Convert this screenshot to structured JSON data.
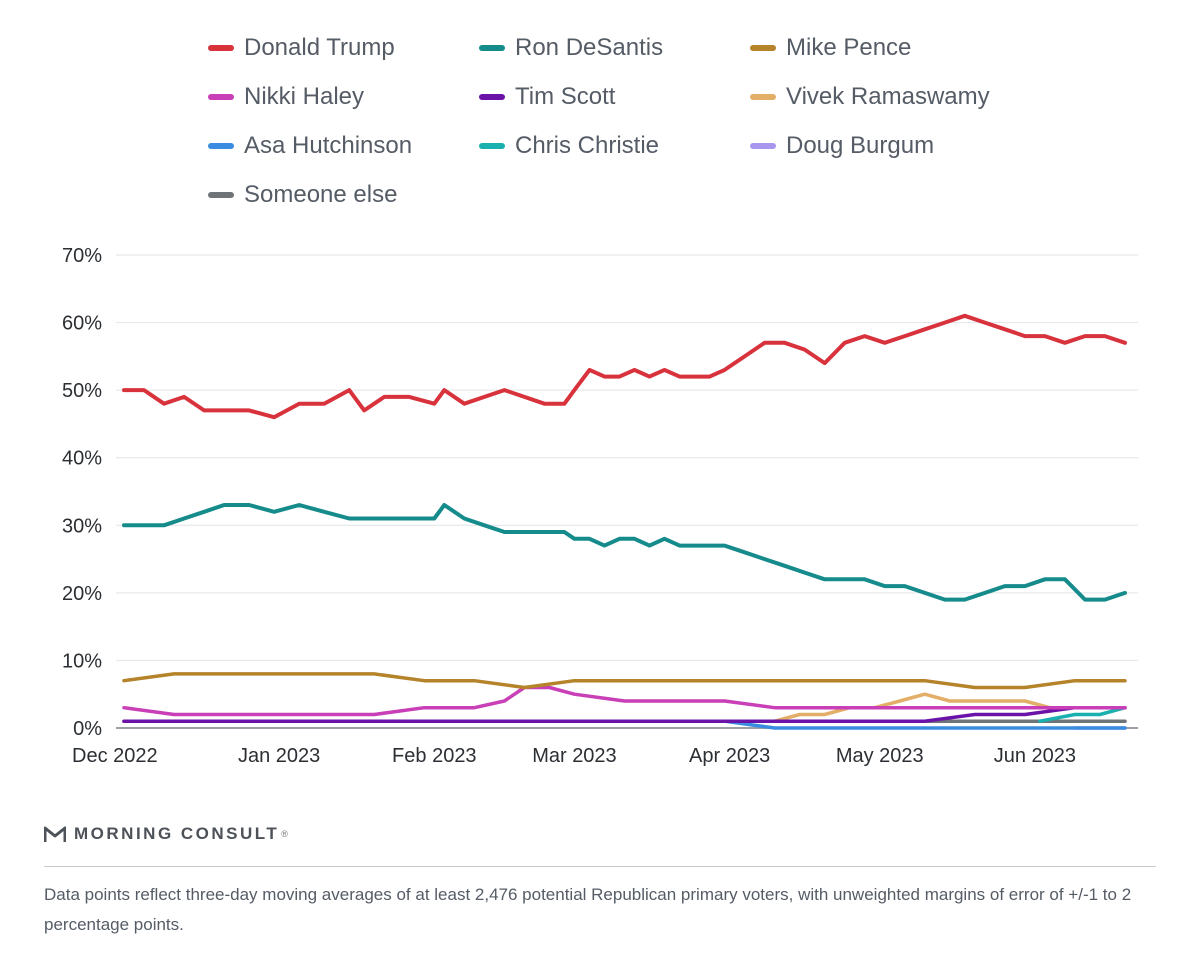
{
  "chart_data": {
    "type": "line",
    "ylim": [
      0,
      70
    ],
    "y_ticks": [
      "0%",
      "10%",
      "20%",
      "30%",
      "40%",
      "50%",
      "60%",
      "70%"
    ],
    "x_ticks": [
      "Dec 2022",
      "Jan 2023",
      "Feb 2023",
      "Mar 2023",
      "Apr 2023",
      "May 2023",
      "Jun 2023"
    ],
    "x_tick_days": [
      0,
      31,
      62,
      90,
      121,
      151,
      182
    ],
    "x_range_days": [
      0,
      201
    ],
    "grid": true,
    "legend_position": "top",
    "series": [
      {
        "name": "Donald Trump",
        "color": "#d8333c",
        "x": [
          0,
          4,
          8,
          12,
          16,
          20,
          25,
          30,
          35,
          40,
          45,
          48,
          52,
          57,
          62,
          64,
          68,
          72,
          76,
          80,
          84,
          88,
          90,
          93,
          96,
          99,
          102,
          105,
          108,
          111,
          114,
          117,
          120,
          124,
          128,
          132,
          136,
          140,
          144,
          148,
          152,
          156,
          160,
          164,
          168,
          172,
          176,
          180,
          184,
          188,
          192,
          196,
          200
        ],
        "values": [
          50,
          50,
          48,
          49,
          47,
          47,
          47,
          46,
          48,
          48,
          50,
          47,
          49,
          49,
          48,
          50,
          48,
          49,
          50,
          49,
          48,
          48,
          50,
          53,
          52,
          52,
          53,
          52,
          53,
          52,
          52,
          52,
          53,
          55,
          57,
          57,
          56,
          54,
          57,
          58,
          57,
          58,
          59,
          60,
          61,
          60,
          59,
          58,
          58,
          57,
          58,
          58,
          57
        ]
      },
      {
        "name": "Ron DeSantis",
        "color": "#168b8c",
        "x": [
          0,
          4,
          8,
          12,
          16,
          20,
          25,
          30,
          35,
          40,
          45,
          48,
          52,
          57,
          62,
          64,
          68,
          72,
          76,
          80,
          84,
          88,
          90,
          93,
          96,
          99,
          102,
          105,
          108,
          111,
          114,
          117,
          120,
          124,
          128,
          132,
          136,
          140,
          144,
          148,
          152,
          156,
          160,
          164,
          168,
          172,
          176,
          180,
          184,
          188,
          192,
          196,
          200
        ],
        "values": [
          30,
          30,
          30,
          31,
          32,
          33,
          33,
          32,
          33,
          32,
          31,
          31,
          31,
          31,
          31,
          33,
          31,
          30,
          29,
          29,
          29,
          29,
          28,
          28,
          27,
          28,
          28,
          27,
          28,
          27,
          27,
          27,
          27,
          26,
          25,
          24,
          23,
          22,
          22,
          22,
          21,
          21,
          20,
          19,
          19,
          20,
          21,
          21,
          22,
          22,
          19,
          19,
          20
        ]
      },
      {
        "name": "Mike Pence",
        "color": "#b5832a",
        "x": [
          0,
          10,
          20,
          30,
          40,
          50,
          60,
          70,
          80,
          90,
          100,
          110,
          120,
          130,
          140,
          150,
          160,
          170,
          180,
          190,
          200
        ],
        "values": [
          7,
          8,
          8,
          8,
          8,
          8,
          7,
          7,
          6,
          7,
          7,
          7,
          7,
          7,
          7,
          7,
          7,
          6,
          6,
          7,
          7
        ]
      },
      {
        "name": "Nikki Haley",
        "color": "#c83fb7",
        "x": [
          0,
          10,
          20,
          30,
          40,
          50,
          60,
          66,
          70,
          76,
          80,
          85,
          90,
          100,
          110,
          120,
          130,
          140,
          150,
          160,
          170,
          180,
          190,
          200
        ],
        "values": [
          3,
          2,
          2,
          2,
          2,
          2,
          3,
          3,
          3,
          4,
          6,
          6,
          5,
          4,
          4,
          4,
          3,
          3,
          3,
          3,
          3,
          3,
          3,
          3
        ]
      },
      {
        "name": "Tim Scott",
        "color": "#6b12a8",
        "x": [
          0,
          20,
          40,
          60,
          80,
          100,
          120,
          140,
          150,
          160,
          170,
          180,
          190,
          200
        ],
        "values": [
          1,
          1,
          1,
          1,
          1,
          1,
          1,
          1,
          1,
          1,
          2,
          2,
          3,
          3
        ]
      },
      {
        "name": "Vivek Ramaswamy",
        "color": "#e3ae67",
        "x": [
          0,
          40,
          80,
          100,
          120,
          130,
          135,
          140,
          145,
          150,
          155,
          160,
          165,
          170,
          175,
          180,
          185,
          190,
          195,
          200
        ],
        "values": [
          1,
          1,
          1,
          1,
          1,
          1,
          2,
          2,
          3,
          3,
          4,
          5,
          4,
          4,
          4,
          4,
          3,
          3,
          3,
          3
        ]
      },
      {
        "name": "Asa Hutchinson",
        "color": "#3a8ce0",
        "x": [
          0,
          40,
          80,
          120,
          130,
          140,
          160,
          180,
          200
        ],
        "values": [
          1,
          1,
          1,
          1,
          0,
          0,
          0,
          0,
          0
        ]
      },
      {
        "name": "Chris Christie",
        "color": "#1bb0b0",
        "x": [
          183,
          190,
          195,
          200
        ],
        "values": [
          1,
          2,
          2,
          3
        ]
      },
      {
        "name": "Doug Burgum",
        "color": "#a896ef",
        "x": [
          190,
          195,
          200
        ],
        "values": [
          0,
          0,
          0
        ]
      },
      {
        "name": "Someone else",
        "color": "#6f7478",
        "x": [
          0,
          40,
          80,
          100,
          120,
          140,
          160,
          180,
          200
        ],
        "values": [
          1,
          1,
          1,
          1,
          1,
          1,
          1,
          1,
          1
        ]
      }
    ]
  },
  "branding": {
    "name": "MORNING CONSULT",
    "mark": "®"
  },
  "footnote": "Data points reflect three-day moving averages of at least 2,476 potential Republican primary voters, with unweighted margins of error of +/-1 to 2 percentage points."
}
